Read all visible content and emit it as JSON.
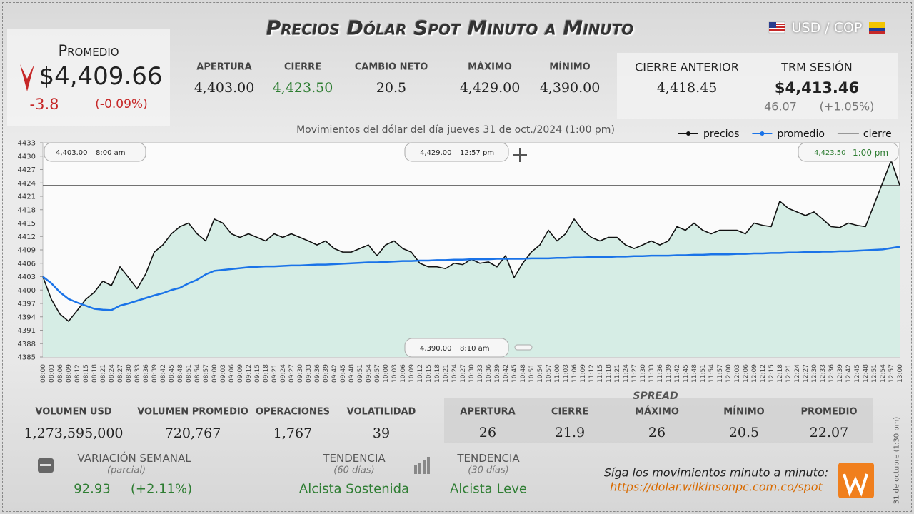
{
  "header": {
    "title": "Precios Dólar Spot Minuto a Minuto",
    "pair": "USD / COP"
  },
  "average": {
    "label": "Promedio",
    "value": "$4,409.66",
    "change": "-3.8",
    "change_pct": "(-0.09%)"
  },
  "stats": [
    {
      "label": "APERTURA",
      "value": "4,403.00"
    },
    {
      "label": "CIERRE",
      "value": "4,423.50"
    },
    {
      "label": "CAMBIO NETO",
      "value": "20.5"
    },
    {
      "label": "MÁXIMO",
      "value": "4,429.00"
    },
    {
      "label": "MÍNIMO",
      "value": "4,390.00"
    },
    {
      "label": "CIERRE ANTERIOR",
      "value": "4,418.45"
    }
  ],
  "trm": {
    "label": "TRM SESIÓN",
    "value": "$4,413.46",
    "change": "46.07",
    "change_pct": "(+1.05%)"
  },
  "chart_data": {
    "type": "line",
    "subtitle": "Movimientos del dólar del día jueves 31 de oct./2024 (1:00 pm)",
    "categories": [
      "08:00",
      "08:03",
      "08:06",
      "08:09",
      "08:12",
      "08:15",
      "08:18",
      "08:21",
      "08:24",
      "08:27",
      "08:30",
      "08:33",
      "08:36",
      "08:39",
      "08:42",
      "08:45",
      "08:48",
      "08:51",
      "08:54",
      "08:57",
      "09:00",
      "09:03",
      "09:06",
      "09:09",
      "09:12",
      "09:15",
      "09:18",
      "09:21",
      "09:24",
      "09:27",
      "09:30",
      "09:33",
      "09:36",
      "09:39",
      "09:42",
      "09:45",
      "09:48",
      "09:51",
      "09:54",
      "09:57",
      "10:00",
      "10:03",
      "10:06",
      "10:09",
      "10:12",
      "10:15",
      "10:18",
      "10:21",
      "10:24",
      "10:27",
      "10:30",
      "10:33",
      "10:36",
      "10:39",
      "10:42",
      "10:45",
      "10:48",
      "10:51",
      "10:54",
      "10:57",
      "11:00",
      "11:03",
      "11:06",
      "11:09",
      "11:12",
      "11:15",
      "11:18",
      "11:21",
      "11:24",
      "11:27",
      "11:30",
      "11:33",
      "11:36",
      "11:39",
      "11:42",
      "11:45",
      "11:48",
      "11:51",
      "11:54",
      "11:57",
      "12:00",
      "12:03",
      "12:06",
      "12:09",
      "12:12",
      "12:15",
      "12:18",
      "12:21",
      "12:24",
      "12:27",
      "12:30",
      "12:33",
      "12:36",
      "12:39",
      "12:42",
      "12:45",
      "12:48",
      "12:51",
      "12:54",
      "12:57",
      "13:00"
    ],
    "series": [
      {
        "name": "precios",
        "color": "#111111",
        "values": [
          4403.0,
          4397.9,
          4394.6,
          4393.0,
          4395.4,
          4397.9,
          4399.5,
          4402.0,
          4401.0,
          4405.2,
          4402.8,
          4400.3,
          4403.6,
          4408.5,
          4410.1,
          4412.6,
          4414.2,
          4415.0,
          4412.6,
          4411.0,
          4415.9,
          4415.0,
          4412.6,
          4411.8,
          4412.6,
          4411.8,
          4411.0,
          4412.6,
          4411.8,
          4412.6,
          4411.8,
          4411.0,
          4410.1,
          4411.0,
          4409.3,
          4408.5,
          4408.5,
          4409.3,
          4410.1,
          4407.7,
          4410.1,
          4411.0,
          4409.3,
          4408.5,
          4406.0,
          4405.2,
          4405.2,
          4404.8,
          4406.0,
          4405.7,
          4406.9,
          4406.0,
          4406.3,
          4405.2,
          4407.7,
          4402.8,
          4406.0,
          4408.5,
          4410.1,
          4413.4,
          4411.0,
          4412.6,
          4415.9,
          4413.4,
          4411.8,
          4411.0,
          4411.8,
          4411.8,
          4410.1,
          4409.3,
          4410.1,
          4411.0,
          4410.1,
          4411.0,
          4414.2,
          4413.4,
          4415.0,
          4413.4,
          4412.6,
          4413.4,
          4413.4,
          4413.4,
          4412.6,
          4415.0,
          4414.5,
          4414.2,
          4419.9,
          4418.3,
          4417.5,
          4416.7,
          4417.5,
          4415.9,
          4414.2,
          4414.0,
          4415.0,
          4414.5,
          4414.2,
          4419.1,
          4424.0,
          4429.0,
          4423.5
        ]
      },
      {
        "name": "promedio",
        "color": "#1a73e8",
        "values": [
          4403.0,
          4401.5,
          4399.5,
          4398.0,
          4397.2,
          4396.5,
          4395.8,
          4395.6,
          4395.5,
          4396.5,
          4397.0,
          4397.6,
          4398.2,
          4398.8,
          4399.3,
          4400.0,
          4400.5,
          4401.5,
          4402.3,
          4403.5,
          4404.3,
          4404.5,
          4404.7,
          4404.9,
          4405.1,
          4405.2,
          4405.3,
          4405.3,
          4405.4,
          4405.5,
          4405.5,
          4405.6,
          4405.7,
          4405.7,
          4405.8,
          4405.9,
          4406.0,
          4406.1,
          4406.2,
          4406.2,
          4406.3,
          4406.4,
          4406.5,
          4406.5,
          4406.6,
          4406.6,
          4406.7,
          4406.7,
          4406.8,
          4406.8,
          4406.9,
          4406.9,
          4406.9,
          4407.0,
          4407.0,
          4407.0,
          4407.0,
          4407.1,
          4407.1,
          4407.1,
          4407.2,
          4407.2,
          4407.3,
          4407.3,
          4407.4,
          4407.4,
          4407.4,
          4407.5,
          4407.5,
          4407.6,
          4407.6,
          4407.7,
          4407.7,
          4407.7,
          4407.8,
          4407.8,
          4407.9,
          4407.9,
          4408.0,
          4408.0,
          4408.0,
          4408.1,
          4408.1,
          4408.2,
          4408.2,
          4408.3,
          4408.3,
          4408.4,
          4408.4,
          4408.5,
          4408.5,
          4408.6,
          4408.6,
          4408.7,
          4408.7,
          4408.8,
          4408.9,
          4409.0,
          4409.1,
          4409.4,
          4409.7
        ]
      }
    ],
    "reference_lines": [
      {
        "name": "cierre",
        "color": "#444444",
        "value": 4423.5
      }
    ],
    "annotations": [
      {
        "value": "4,403.00",
        "time": "8:00 am"
      },
      {
        "value": "4,429.00",
        "time": "12:57 pm"
      },
      {
        "value": "4,423.50",
        "time": "1:00 pm"
      },
      {
        "value": "4,390.00",
        "time": "8:10 am"
      }
    ],
    "ylim": [
      4385,
      4433
    ],
    "yticks": [
      4385,
      4388,
      4391,
      4394,
      4397,
      4400,
      4403,
      4406,
      4409,
      4412,
      4415,
      4418,
      4421,
      4424,
      4427,
      4430,
      4433
    ],
    "area_color": "#d6ede5"
  },
  "volume_stats": [
    {
      "label": "VOLUMEN USD",
      "value": "1,273,595,000"
    },
    {
      "label": "VOLUMEN PROMEDIO",
      "value": "720,767"
    },
    {
      "label": "OPERACIONES",
      "value": "1,767"
    },
    {
      "label": "VOLATILIDAD",
      "value": "39"
    }
  ],
  "spread": {
    "title": "SPREAD",
    "items": [
      {
        "label": "APERTURA",
        "value": "26"
      },
      {
        "label": "CIERRE",
        "value": "21.9"
      },
      {
        "label": "MÁXIMO",
        "value": "26"
      },
      {
        "label": "MÍNIMO",
        "value": "20.5"
      },
      {
        "label": "PROMEDIO",
        "value": "22.07"
      }
    ]
  },
  "weekly": {
    "label": "VARIACIÓN SEMANAL",
    "note": "(parcial)",
    "value": "92.93",
    "pct": "(+2.11%)"
  },
  "trends": [
    {
      "label": "TENDENCIA",
      "period": "(60 días)",
      "value": "Alcista Sostenida"
    },
    {
      "label": "TENDENCIA",
      "period": "(30 días)",
      "value": "Alcista Leve"
    }
  ],
  "footer": {
    "text": "Síga los movimientos minuto a minuto:",
    "url": "https://dolar.wilkinsonpc.com.co/spot",
    "side_note": "31 de octubre (1:30 pm)"
  }
}
